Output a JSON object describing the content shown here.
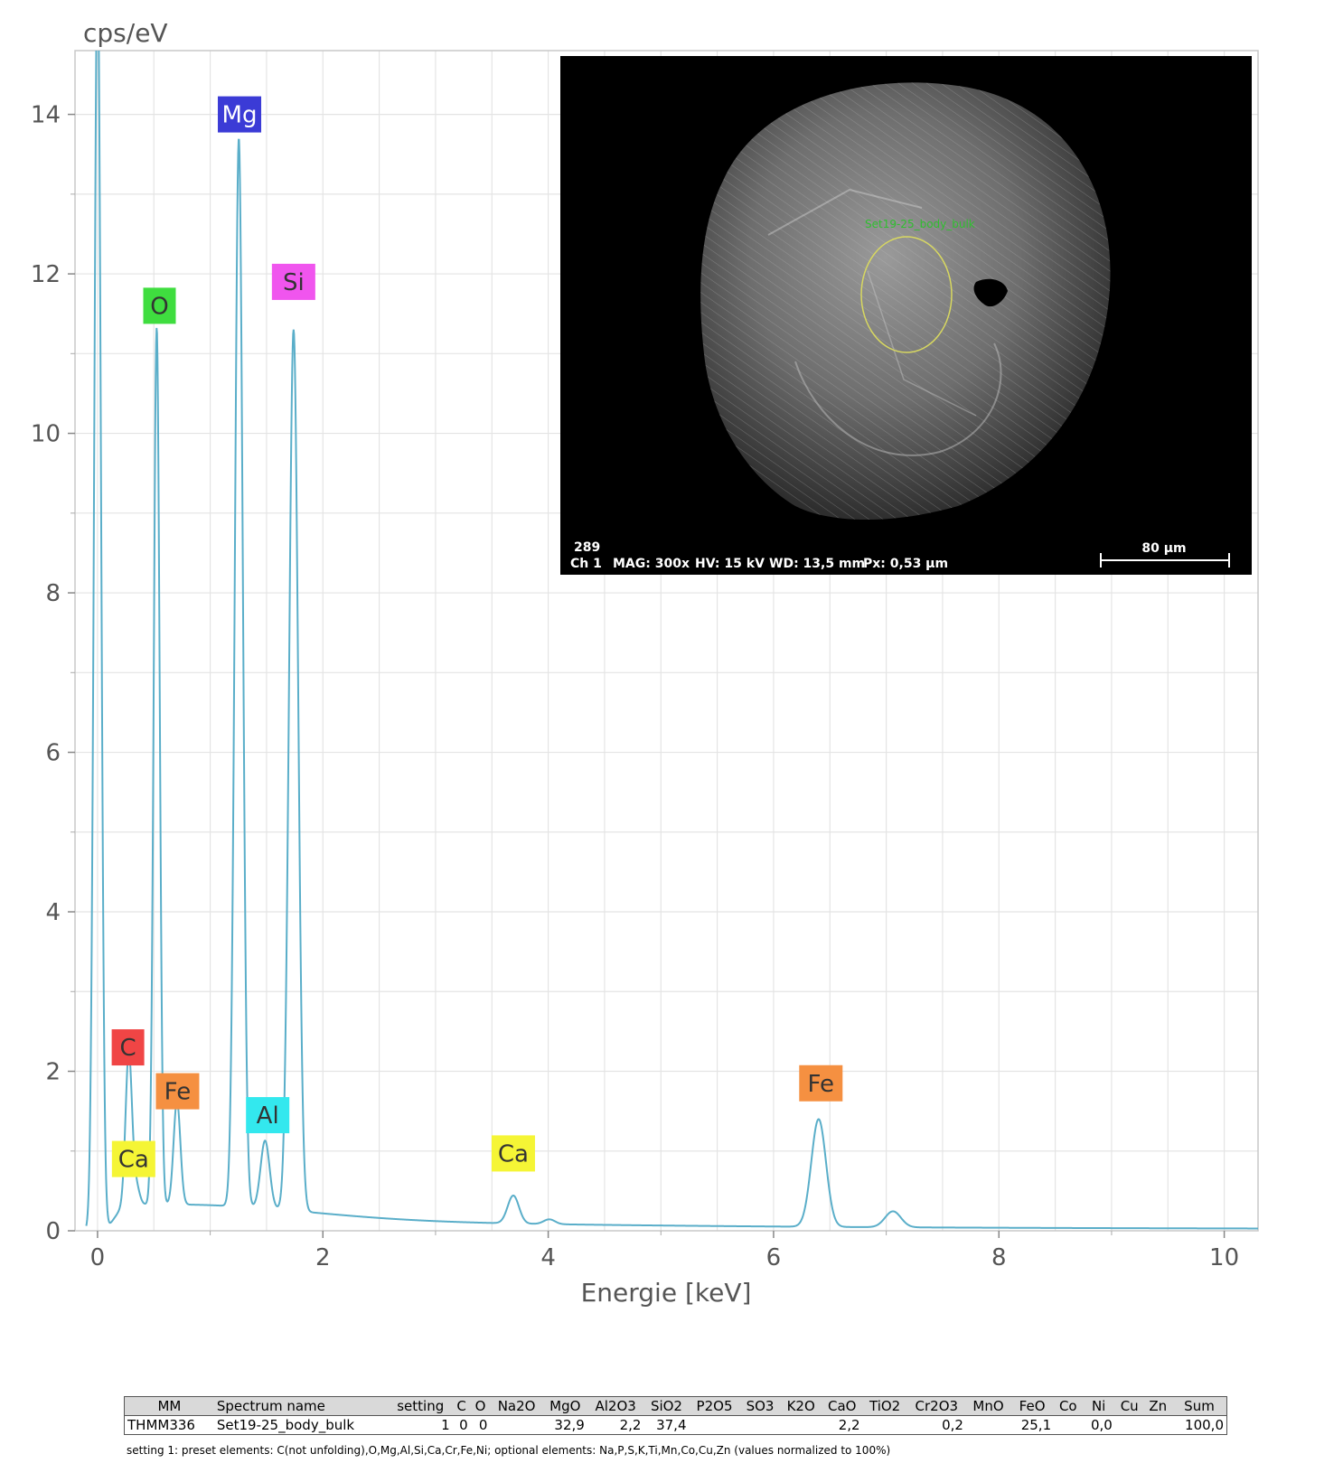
{
  "chart_data": {
    "type": "line",
    "ylabel": "cps/eV",
    "xlabel": "Energie [keV]",
    "xlim": [
      -0.2,
      10.3
    ],
    "ylim": [
      0,
      14.8
    ],
    "x_ticks": [
      0,
      2,
      4,
      6,
      8,
      10
    ],
    "y_ticks": [
      0,
      2,
      4,
      6,
      8,
      10,
      12,
      14
    ],
    "grid": true,
    "line_color": "#5aaec9",
    "peaks": [
      {
        "element": "C",
        "energy": 0.277,
        "height": 1.9,
        "width": 0.028
      },
      {
        "element": "Ca",
        "energy": 0.341,
        "height": 0.25,
        "width": 0.03
      },
      {
        "element": "O",
        "energy": 0.525,
        "height": 11.0,
        "width": 0.026
      },
      {
        "element": "Fe",
        "energy": 0.705,
        "height": 1.3,
        "width": 0.03
      },
      {
        "element": "Mg",
        "energy": 1.254,
        "height": 13.4,
        "width": 0.035
      },
      {
        "element": "Al",
        "energy": 1.487,
        "height": 0.85,
        "width": 0.04
      },
      {
        "element": "Si",
        "energy": 1.74,
        "height": 11.05,
        "width": 0.04
      },
      {
        "element": "Ca",
        "energy": 3.69,
        "height": 0.35,
        "width": 0.05
      },
      {
        "element": "Ca",
        "energy": 4.01,
        "height": 0.06,
        "width": 0.05
      },
      {
        "element": "Fe",
        "energy": 6.4,
        "height": 1.35,
        "width": 0.065
      },
      {
        "element": "Fe",
        "energy": 7.06,
        "height": 0.2,
        "width": 0.07
      }
    ],
    "zero_peak": {
      "energy": 0.0,
      "height": 16.0,
      "width": 0.03
    },
    "annotations": [
      {
        "text": "Mg",
        "x": 1.26,
        "y": 14.0,
        "color": "#3b3bd6",
        "text_color": "#ffffff"
      },
      {
        "text": "O",
        "x": 0.55,
        "y": 11.6,
        "color": "#3fdd3f",
        "text_color": "#333333"
      },
      {
        "text": "Si",
        "x": 1.74,
        "y": 11.9,
        "color": "#f055ee",
        "text_color": "#333333"
      },
      {
        "text": "C",
        "x": 0.27,
        "y": 2.3,
        "color": "#f04545",
        "text_color": "#333333"
      },
      {
        "text": "Fe",
        "x": 0.71,
        "y": 1.75,
        "color": "#f59041",
        "text_color": "#333333"
      },
      {
        "text": "Al",
        "x": 1.51,
        "y": 1.45,
        "color": "#33e8ee",
        "text_color": "#333333"
      },
      {
        "text": "Ca",
        "x": 0.32,
        "y": 0.9,
        "color": "#f5f535",
        "text_color": "#333333"
      },
      {
        "text": "Ca",
        "x": 3.69,
        "y": 0.97,
        "color": "#f5f535",
        "text_color": "#333333"
      },
      {
        "text": "Fe",
        "x": 6.42,
        "y": 1.85,
        "color": "#f59041",
        "text_color": "#333333"
      }
    ]
  },
  "inset": {
    "region_label": "Set19-25_body_bulk",
    "image_number": "289",
    "channel": "Ch 1",
    "mag": "MAG: 300x",
    "hv": "HV: 15 kV",
    "wd": "WD: 13,5 mm",
    "px": "Px: 0,53 µm",
    "scale_bar": "80 µm"
  },
  "table": {
    "headers": [
      "MM",
      "Spectrum name",
      "setting",
      "C",
      "O",
      "Na2O",
      "MgO",
      "Al2O3",
      "SiO2",
      "P2O5",
      "SO3",
      "K2O",
      "CaO",
      "TiO2",
      "Cr2O3",
      "MnO",
      "FeO",
      "Co",
      "Ni",
      "Cu",
      "Zn",
      "Sum"
    ],
    "rows": [
      [
        "THMM336",
        "Set19-25_body_bulk",
        "1",
        "0",
        "0",
        "",
        "32,9",
        "2,2",
        "37,4",
        "",
        "",
        "",
        "2,2",
        "",
        "0,2",
        "",
        "25,1",
        "",
        "0,0",
        "",
        "",
        "100,0"
      ]
    ],
    "note": "setting 1: preset elements: C(not unfolding),O,Mg,Al,Si,Ca,Cr,Fe,Ni; optional elements: Na,P,S,K,Ti,Mn,Co,Cu,Zn (values normalized to 100%)"
  }
}
